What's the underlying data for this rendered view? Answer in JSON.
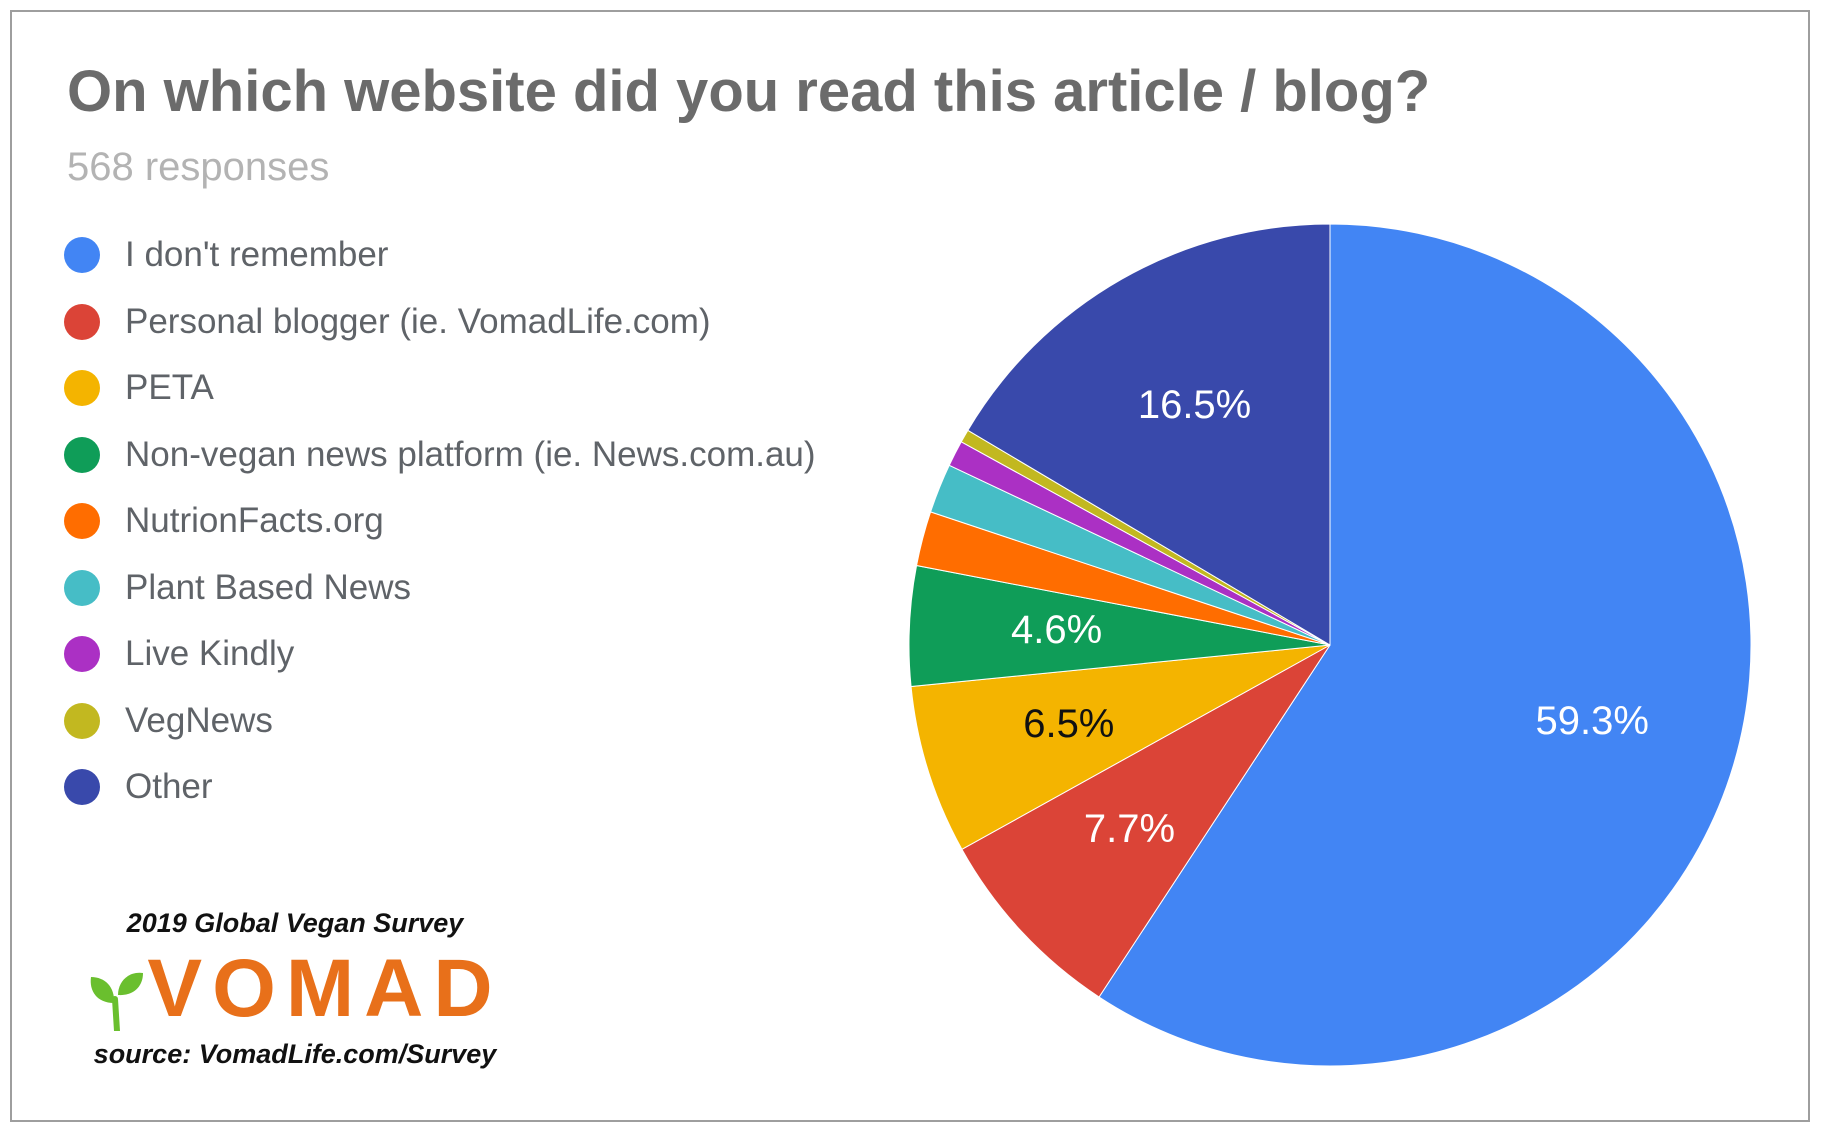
{
  "chart_data": {
    "type": "pie",
    "title": "On which website did you read this article / blog?",
    "subtitle": "568 responses",
    "legend_position": "left",
    "slices": [
      {
        "label": "I don't remember",
        "value": 59.3,
        "color": "#4285f4",
        "value_label": "59.3%",
        "label_color": "#ffffff"
      },
      {
        "label": "Personal blogger (ie. VomadLife.com)",
        "value": 7.7,
        "color": "#db4437",
        "value_label": "7.7%",
        "label_color": "#ffffff"
      },
      {
        "label": "PETA",
        "value": 6.5,
        "color": "#f4b400",
        "value_label": "6.5%",
        "label_color": "#111111"
      },
      {
        "label": "Non-vegan news platform (ie. News.com.au)",
        "value": 4.6,
        "color": "#0f9d58",
        "value_label": "4.6%",
        "label_color": "#ffffff"
      },
      {
        "label": "NutrionFacts.org",
        "value": 2.1,
        "color": "#ff6d00",
        "value_label": "",
        "label_color": "#ffffff"
      },
      {
        "label": "Plant Based News",
        "value": 1.9,
        "color": "#46bdc6",
        "value_label": "",
        "label_color": "#ffffff"
      },
      {
        "label": "Live Kindly",
        "value": 1.0,
        "color": "#ab30c4",
        "value_label": "",
        "label_color": "#ffffff"
      },
      {
        "label": "VegNews",
        "value": 0.5,
        "color": "#c2b820",
        "value_label": "",
        "label_color": "#ffffff"
      },
      {
        "label": "Other",
        "value": 16.5,
        "color": "#3949ab",
        "value_label": "16.5%",
        "label_color": "#ffffff"
      }
    ]
  },
  "branding": {
    "survey_title": "2019 Global Vegan Survey",
    "logo_text": "VOMAD",
    "logo_leaf_color": "#6abf2e",
    "logo_text_color": "#e8701a",
    "source": "source: VomadLife.com/Survey"
  }
}
